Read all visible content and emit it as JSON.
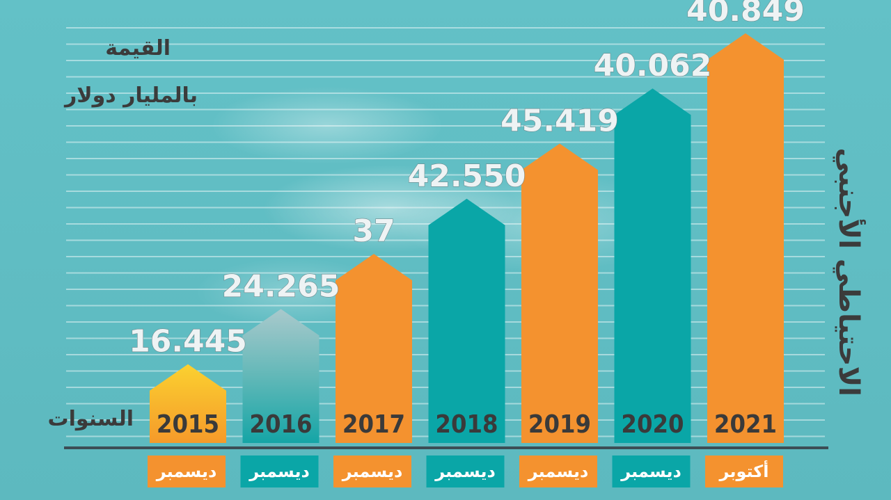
{
  "chart_data": {
    "type": "bar",
    "title": "الاحتياطي الأجنبي",
    "ylabel_line1": "القيمة",
    "ylabel_line2": "بالمليار دولار",
    "xlabel": "السنوات",
    "categories": [
      "2015",
      "2016",
      "2017",
      "2018",
      "2019",
      "2020",
      "2021"
    ],
    "months": [
      "ديسمبر",
      "ديسمبر",
      "ديسمبر",
      "ديسمبر",
      "ديسمبر",
      "ديسمبر",
      "أكتوبر"
    ],
    "value_labels": [
      "16.445",
      "24.265",
      "37",
      "42.550",
      "45.419",
      "40.062",
      "40.849"
    ],
    "bar_levels": [
      1,
      2,
      3,
      4,
      5,
      6,
      7
    ],
    "bar_colors": [
      "#f7b82a",
      "#3fb2b0",
      "#f4922f",
      "#0aa6a7",
      "#f4922f",
      "#0aa6a7",
      "#f4922f"
    ],
    "grid": true
  }
}
